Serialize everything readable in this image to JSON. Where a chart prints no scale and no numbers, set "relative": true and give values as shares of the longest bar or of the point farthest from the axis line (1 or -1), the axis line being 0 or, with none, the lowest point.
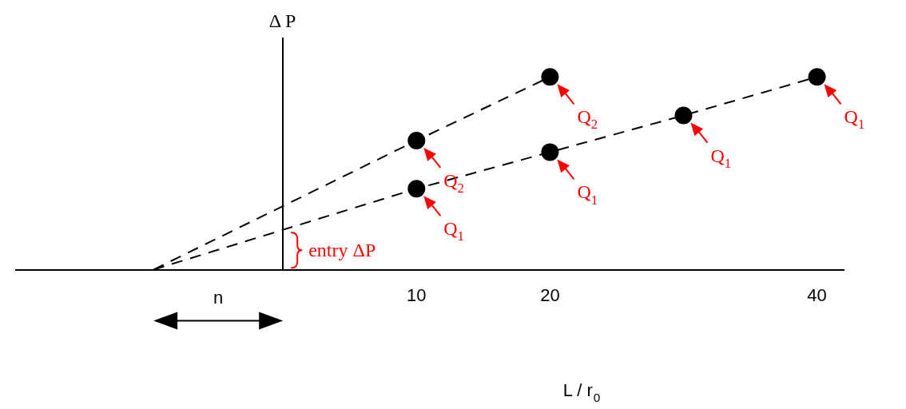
{
  "chart_data": {
    "type": "line",
    "relative": true,
    "xlabel": "L / r$_{0}$",
    "ylabel": "Δ P",
    "xlim": [
      -20,
      42
    ],
    "xticks": [
      10,
      20,
      40
    ],
    "grid": false,
    "legend": false,
    "series": [
      {
        "x": [
          -9.7,
          10,
          20
        ],
        "values": [
          0,
          0.67,
          1
        ],
        "color": "#000000",
        "line_style": "dashed",
        "marker": "none"
      },
      {
        "x": [
          -9.7,
          10,
          20,
          30,
          40
        ],
        "values": [
          0,
          0.42,
          0.61,
          0.8,
          1
        ],
        "color": "#000000",
        "line_style": "dashed",
        "marker": "none"
      },
      {
        "type": "scatter",
        "x": [
          10,
          20
        ],
        "values": [
          0.67,
          1
        ],
        "color": "#000000",
        "marker": "circle"
      },
      {
        "type": "scatter",
        "x": [
          10,
          20,
          30,
          40
        ],
        "values": [
          0.42,
          0.61,
          0.8,
          1
        ],
        "color": "#000000",
        "marker": "circle"
      }
    ],
    "annotations": [
      {
        "text": "Q$_{2}$",
        "x": 10,
        "y": 0.67
      },
      {
        "text": "Q$_{2}$",
        "x": 20,
        "y": 1
      },
      {
        "text": "Q$_{1}$",
        "x": 10,
        "y": 0.42
      },
      {
        "text": "Q$_{1}$",
        "x": 20,
        "y": 0.61
      },
      {
        "text": "Q$_{1}$",
        "x": 30,
        "y": 0.8
      },
      {
        "text": "Q$_{1}$",
        "x": 40,
        "y": 1
      },
      {
        "text": "entry ΔP",
        "x": 0,
        "y": 0.21
      },
      "n"
    ]
  }
}
